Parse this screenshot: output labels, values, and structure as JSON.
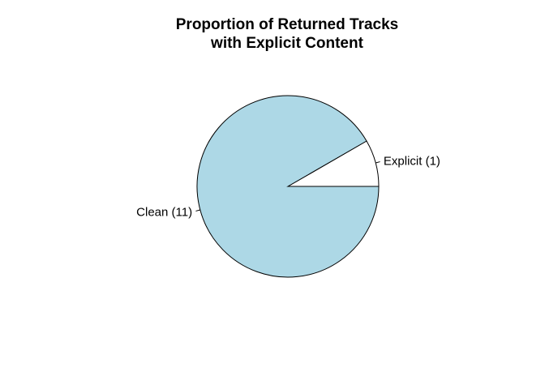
{
  "chart_data": {
    "type": "pie",
    "title_lines": [
      "Proportion of Returned Tracks",
      "with Explicit Content"
    ],
    "slices": [
      {
        "label": "Explicit (1)",
        "value": 1,
        "color": "#ffffff"
      },
      {
        "label": "Clean (11)",
        "value": 11,
        "color": "#add8e6"
      }
    ],
    "start_angle_deg": 0,
    "direction": "counterclockwise",
    "border_color": "#000000"
  }
}
